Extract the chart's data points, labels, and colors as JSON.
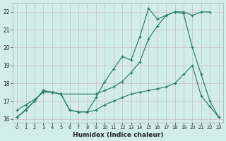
{
  "xlabel": "Humidex (Indice chaleur)",
  "bg_color": "#d0ede9",
  "line_color": "#2d7a6e",
  "grid_color_major": "#b8d8d4",
  "grid_color_minor": "#c8e5e1",
  "ylim": [
    15.8,
    22.5
  ],
  "xlim": [
    -0.5,
    23.5
  ],
  "yticks": [
    16,
    17,
    18,
    19,
    20,
    21,
    22
  ],
  "xticks": [
    0,
    1,
    2,
    3,
    4,
    5,
    6,
    7,
    8,
    9,
    10,
    11,
    12,
    13,
    14,
    15,
    16,
    17,
    18,
    19,
    20,
    21,
    22,
    23
  ],
  "line1_x": [
    0,
    1,
    2,
    3,
    4,
    5,
    6,
    7,
    8,
    9,
    10,
    11,
    12,
    13,
    14,
    15,
    16,
    17,
    18,
    19,
    20,
    21,
    22,
    23
  ],
  "line1_y": [
    16.1,
    16.5,
    17.0,
    17.6,
    17.5,
    17.4,
    16.5,
    16.4,
    16.4,
    17.2,
    18.1,
    18.8,
    19.5,
    19.3,
    20.6,
    22.2,
    21.6,
    21.8,
    22.0,
    21.9,
    20.0,
    18.5,
    17.0,
    16.1
  ],
  "line2_x": [
    0,
    2,
    3,
    4,
    5,
    9,
    10,
    11,
    12,
    13,
    14,
    15,
    16,
    17,
    18,
    19,
    20,
    21,
    22
  ],
  "line2_y": [
    16.1,
    17.0,
    17.6,
    17.5,
    17.4,
    17.4,
    17.6,
    17.8,
    18.1,
    18.6,
    19.2,
    20.5,
    21.2,
    21.8,
    22.0,
    22.0,
    21.8,
    22.0,
    22.0
  ],
  "line3_x": [
    0,
    1,
    2,
    3,
    4,
    5,
    6,
    7,
    8,
    9,
    10,
    11,
    12,
    13,
    14,
    15,
    16,
    17,
    18,
    19,
    20,
    21,
    22,
    23
  ],
  "line3_y": [
    16.5,
    16.8,
    17.1,
    17.5,
    17.5,
    17.4,
    16.5,
    16.4,
    16.4,
    16.5,
    16.8,
    17.0,
    17.2,
    17.4,
    17.5,
    17.6,
    17.7,
    17.8,
    18.0,
    18.5,
    19.0,
    17.3,
    16.7,
    16.1
  ]
}
